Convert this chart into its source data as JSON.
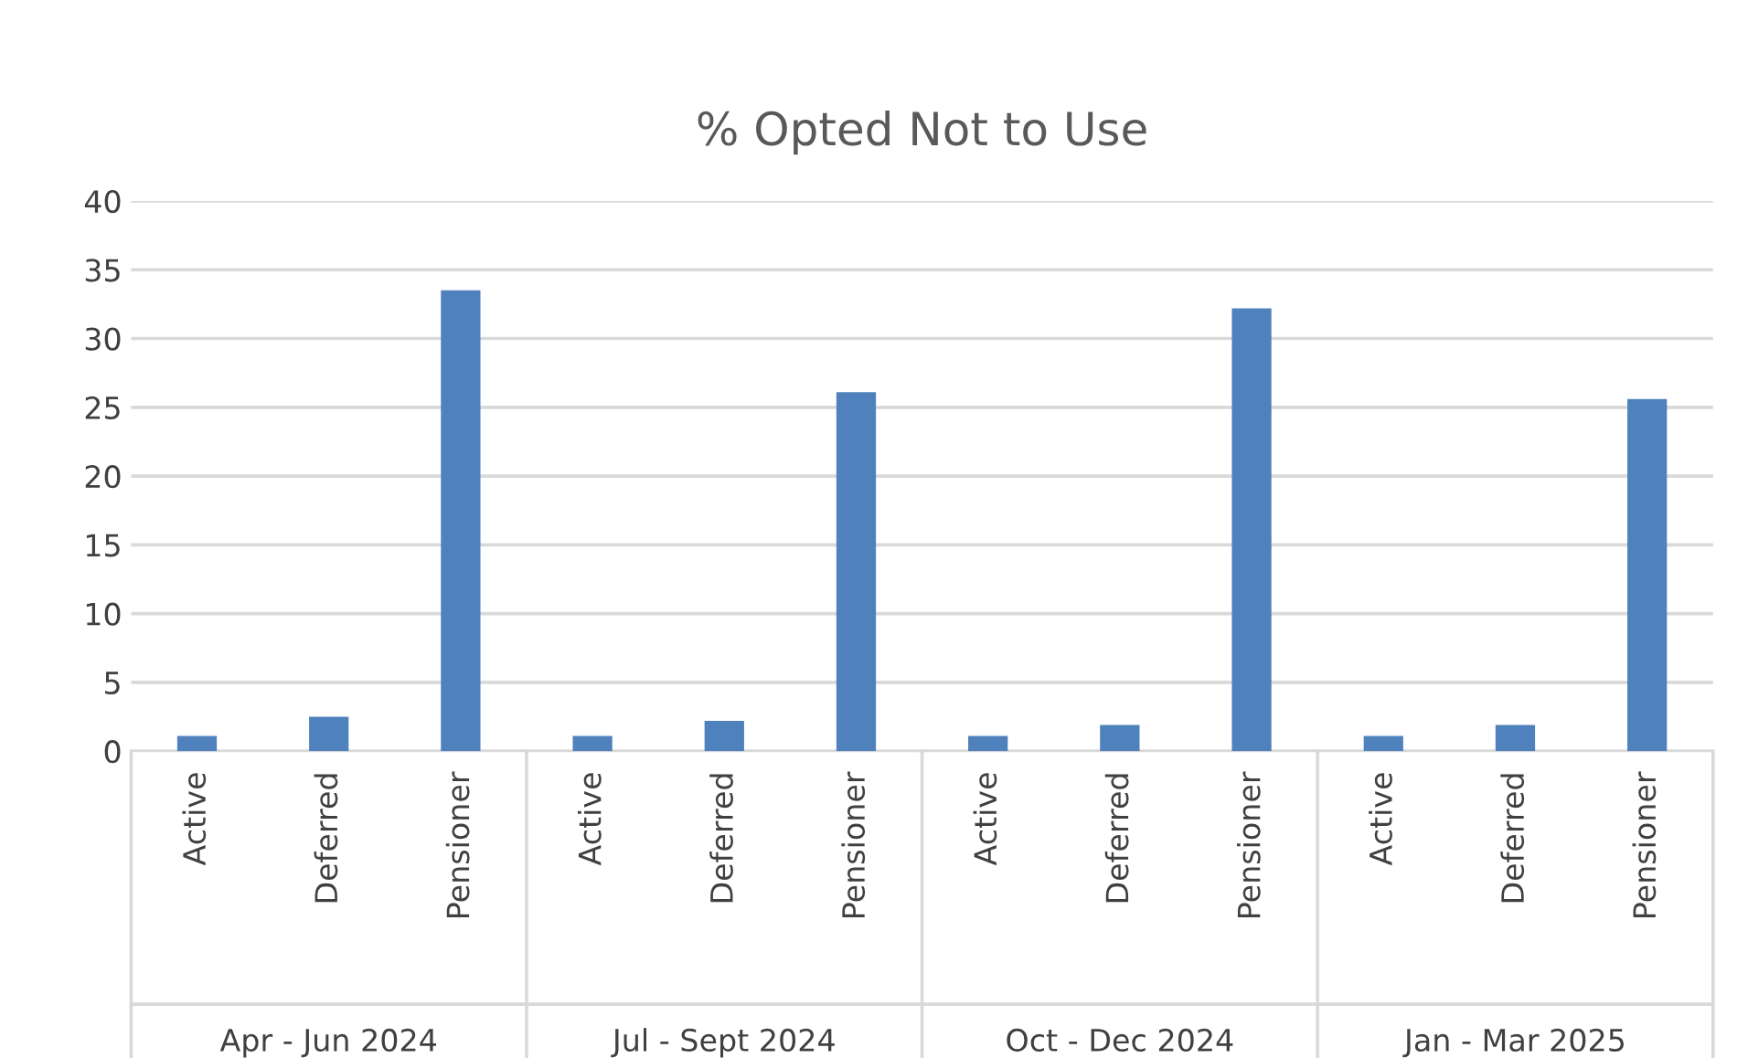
{
  "chart_data": {
    "type": "bar",
    "title": "% Opted Not to Use",
    "categories": [
      "Active",
      "Deferred",
      "Pensioner",
      "Active",
      "Deferred",
      "Pensioner",
      "Active",
      "Deferred",
      "Pensioner",
      "Active",
      "Deferred",
      "Pensioner"
    ],
    "values": [
      1.1,
      2.5,
      33.5,
      1.1,
      2.2,
      26.1,
      1.1,
      1.9,
      32.2,
      1.1,
      1.9,
      25.6
    ],
    "color": "#4f81bd",
    "annotations": [
      "Apr - Jun 2024",
      "Jul - Sept 2024",
      "Oct - Dec 2024",
      "Jan - Mar 2025"
    ],
    "ylim": [
      0,
      40
    ],
    "yticks": [
      0,
      5,
      10,
      15,
      20,
      25,
      30,
      35,
      40
    ],
    "grid": "y",
    "legend": false
  }
}
